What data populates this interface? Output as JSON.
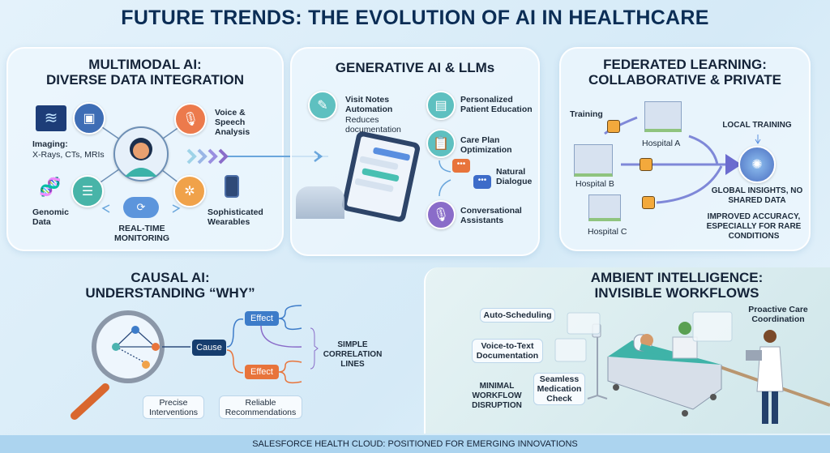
{
  "title": "FUTURE TRENDS: THE EVOLUTION OF AI IN HEALTHCARE",
  "multimodal": {
    "title1": "MULTIMODAL AI:",
    "title2": "DIVERSE DATA INTEGRATION",
    "imaging": "Imaging:",
    "imaging_sub": "X-Rays, CTs, MRIs",
    "voice": "Voice & Speech Analysis",
    "genomic": "Genomic Data",
    "wearables": "Sophisticated Wearables",
    "monitoring": "REAL-TIME MONITORING"
  },
  "generative": {
    "title": "GENERATIVE AI & LLMs",
    "visit_notes": "Visit Notes Automation",
    "visit_notes_sub": "Reduces documentation",
    "education": "Personalized Patient Education",
    "care_plan": "Care Plan Optimization",
    "dialogue": "Natural Dialogue",
    "assistants": "Conversational Assistants"
  },
  "federated": {
    "title1": "FEDERATED LEARNING:",
    "title2": "COLLABORATIVE & PRIVATE",
    "training": "Training",
    "hospital_a": "Hospital A",
    "hospital_b": "Hospital B",
    "hospital_c": "Hospital C",
    "local_training": "LOCAL TRAINING",
    "global": "GLOBAL INSIGHTS, NO SHARED DATA",
    "accuracy": "IMPROVED ACCURACY, ESPECIALLY FOR RARE CONDITIONS"
  },
  "causal": {
    "title1": "CAUSAL AI:",
    "title2": "UNDERSTANDING “WHY”",
    "cause": "Cause",
    "effect1": "Effect",
    "effect2": "Effect",
    "correlation": "SIMPLE CORRELATION LINES",
    "precise": "Precise Interventions",
    "reliable": "Reliable Recommendations"
  },
  "ambient": {
    "title1": "AMBIENT INTELLIGENCE:",
    "title2": "INVISIBLE WORKFLOWS",
    "auto_scheduling": "Auto-Scheduling",
    "voice_to_text": "Voice-to-Text Documentation",
    "medication": "Seamless Medication Check",
    "minimal": "MINIMAL WORKFLOW DISRUPTION",
    "proactive": "Proactive Care Coordination"
  },
  "footer": "SALESFORCE HEALTH CLOUD: POSITIONED FOR EMERGING INNOVATIONS",
  "colors": {
    "navy": "#0b2d55",
    "blue": "#3d7cc9",
    "orange": "#e8743b",
    "teal": "#4bb3b0",
    "purple": "#8a6cc9"
  }
}
